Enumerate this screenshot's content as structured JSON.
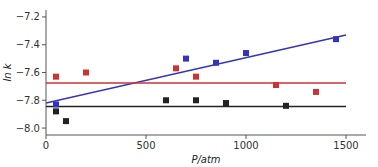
{
  "chart_data": {
    "type": "scatter",
    "xlabel": "P/atm",
    "ylabel": "ln k",
    "xlim": [
      0,
      1600
    ],
    "ylim": [
      -8.05,
      -7.15
    ],
    "xticks": [
      0,
      500,
      1000,
      1500
    ],
    "yticks": [
      {
        "value": -8.0,
        "label": "−8.0"
      },
      {
        "value": -7.8,
        "label": "−7.8"
      },
      {
        "value": -7.6,
        "label": "−7.6"
      },
      {
        "value": -7.4,
        "label": "−7.4"
      },
      {
        "value": -7.2,
        "label": "−7.2"
      }
    ],
    "grid": false,
    "series": [
      {
        "type": "line",
        "color": "#3333bb",
        "x": [
          0,
          1500
        ],
        "values": [
          -7.82,
          -7.33
        ]
      },
      {
        "type": "line",
        "color": "#cc3333",
        "x": [
          0,
          1500
        ],
        "values": [
          -7.675,
          -7.675
        ]
      },
      {
        "type": "line",
        "color": "#222222",
        "x": [
          0,
          1500
        ],
        "values": [
          -7.845,
          -7.845
        ]
      },
      {
        "type": "scatter",
        "marker": "square",
        "color": "#3333bb",
        "x": [
          50,
          700,
          850,
          1000,
          1450
        ],
        "values": [
          -7.83,
          -7.5,
          -7.53,
          -7.46,
          -7.36
        ]
      },
      {
        "type": "scatter",
        "marker": "square",
        "color": "#cc3333",
        "x": [
          50,
          200,
          650,
          750,
          1150,
          1350
        ],
        "values": [
          -7.63,
          -7.6,
          -7.57,
          -7.63,
          -7.69,
          -7.74
        ]
      },
      {
        "type": "scatter",
        "marker": "square",
        "color": "#222222",
        "x": [
          50,
          100,
          600,
          750,
          900,
          1200
        ],
        "values": [
          -7.88,
          -7.95,
          -7.8,
          -7.8,
          -7.82,
          -7.84
        ]
      }
    ]
  }
}
